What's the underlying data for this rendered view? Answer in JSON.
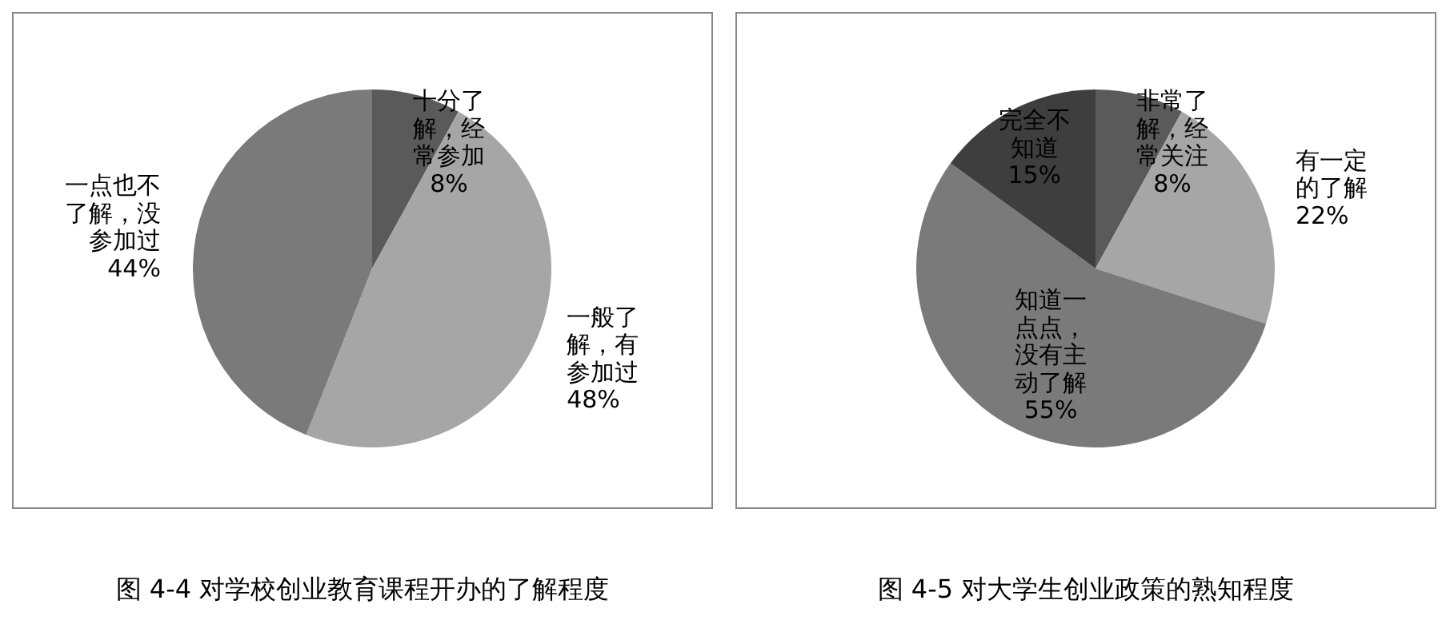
{
  "chart_data": [
    {
      "type": "pie",
      "title": "图 4-4 对学校创业教育课程开办的了解程度",
      "categories": [
        "十分了解，经常参加",
        "一般了解，有参加过",
        "一点也不了解，没参加过"
      ],
      "values": [
        8,
        48,
        44
      ],
      "value_labels": [
        "8%",
        "48%",
        "44%"
      ],
      "colors": [
        "#5a5a5a",
        "#a6a6a6",
        "#7a7a7a"
      ],
      "data_labels": true
    },
    {
      "type": "pie",
      "title": "图 4-5 对大学生创业政策的熟知程度",
      "categories": [
        "非常了解，经常关注",
        "有一定的了解",
        "知道一点点，没有主动了解",
        "完全不知道"
      ],
      "values": [
        8,
        22,
        55,
        15
      ],
      "value_labels": [
        "8%",
        "22%",
        "55%",
        "15%"
      ],
      "colors": [
        "#5a5a5a",
        "#a6a6a6",
        "#7a7a7a",
        "#3e3e3e"
      ],
      "data_labels": true
    }
  ]
}
